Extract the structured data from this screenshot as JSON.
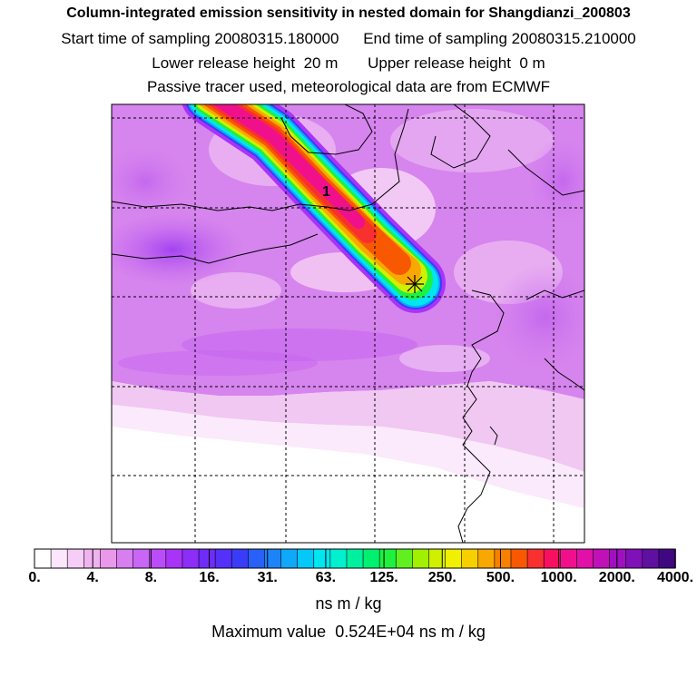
{
  "header": {
    "title": "Column-integrated emission sensitivity in nested domain for Shangdianzi_200803",
    "start_label": "Start time of sampling",
    "start_value": "20080315.180000",
    "end_label": "End time of sampling",
    "end_value": "20080315.210000",
    "lower_label": "Lower release height",
    "lower_value": "20 m",
    "upper_label": "Upper release height",
    "upper_value": "0 m",
    "line4": "Passive tracer used, meteorological data are from ECMWF"
  },
  "map": {
    "release_marker_label": "1"
  },
  "colorbar": {
    "tick_labels": [
      "0.",
      "4.",
      "8.",
      "16.",
      "31.",
      "63.",
      "125.",
      "250.",
      "500.",
      "1000.",
      "2000.",
      "4000."
    ],
    "colors": [
      "#ffffff",
      "#fbe6fb",
      "#f6cdf6",
      "#f0b3f0",
      "#ea99ea",
      "#d77ef0",
      "#c966f5",
      "#bb4df8",
      "#a834f8",
      "#8c2ef8",
      "#6f2cf8",
      "#5530f8",
      "#3a3cf8",
      "#2860f8",
      "#1c84f8",
      "#10a8f8",
      "#04c8f8",
      "#00e6f0",
      "#00f0d0",
      "#00f0a0",
      "#00f070",
      "#20f040",
      "#60f020",
      "#a0f000",
      "#d0f000",
      "#f0f000",
      "#f8d000",
      "#f8a800",
      "#f88000",
      "#f85800",
      "#f83030",
      "#f81060",
      "#f0108c",
      "#e010a8",
      "#c010b8",
      "#a010c0",
      "#8010b8",
      "#6010a0",
      "#400880"
    ],
    "units": "ns m / kg"
  },
  "footer": {
    "max_label": "Maximum value",
    "max_value": "0.524E+04",
    "max_units": "ns m / kg"
  }
}
